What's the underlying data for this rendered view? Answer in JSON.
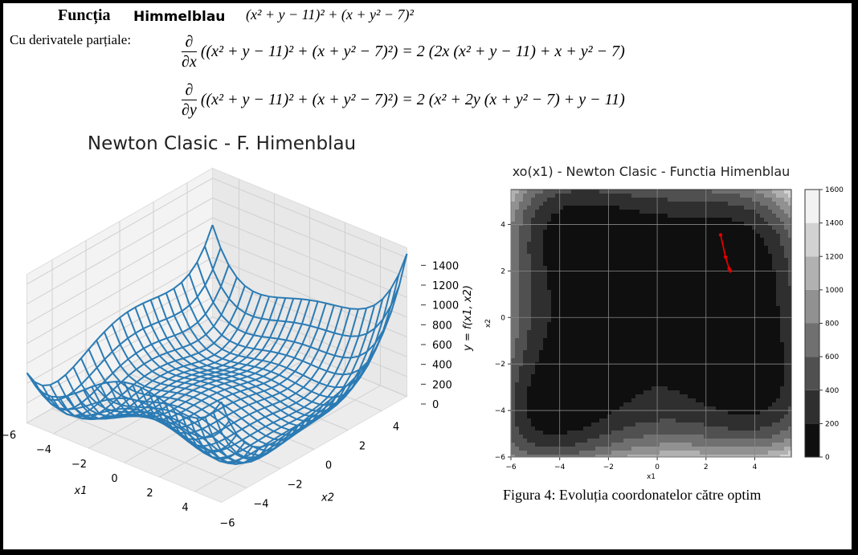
{
  "header": {
    "title_prefix": "Funcția",
    "title_name": "Himmelblau",
    "formula": "(x² + y − 11)² + (x + y² − 7)²",
    "derivatives_label": "Cu derivatele parțiale:",
    "derivative_x": {
      "numerator": "∂",
      "denominator": "∂x",
      "expression": "((x² + y − 11)² + (x + y² − 7)²) = 2 (2x (x² + y − 11) + x + y² − 7)"
    },
    "derivative_y": {
      "numerator": "∂",
      "denominator": "∂y",
      "expression": "((x² + y − 11)² + (x + y² − 7)²) = 2 (x² + 2y (x + y² − 7) + y − 11)"
    }
  },
  "chart_data": [
    {
      "type": "surface3d",
      "title": "Newton Clasic - F. Himenblau",
      "xlabel": "x1",
      "ylabel": "x2",
      "zlabel": "y = f(x1, x2)",
      "color": "#2b7bb4",
      "xlim": [
        -5.5,
        5.5
      ],
      "ylim": [
        -5.5,
        5.5
      ],
      "zlim": [
        0,
        1500
      ],
      "xticks": [
        {
          "value": -6,
          "label": "−6"
        },
        {
          "value": -4,
          "label": "−4"
        },
        {
          "value": -2,
          "label": "−2"
        },
        0,
        2,
        4
      ],
      "yticks": [
        {
          "value": -6,
          "label": "−6"
        },
        {
          "value": -4,
          "label": "−4"
        },
        {
          "value": -2,
          "label": "−2"
        },
        0,
        2,
        4
      ],
      "zticks": [
        0,
        200,
        400,
        600,
        800,
        1000,
        1200,
        1400
      ]
    },
    {
      "type": "contour",
      "title": "xo(x1) - Newton Clasic - Functia Himenblau",
      "xlabel": "x1",
      "ylabel": "x2",
      "grid": true,
      "xlim": [
        -6,
        5.5
      ],
      "ylim": [
        -6,
        5.5
      ],
      "xticks": [
        {
          "value": -6,
          "label": "−6"
        },
        {
          "value": -4,
          "label": "−4"
        },
        {
          "value": -2,
          "label": "−2"
        },
        0,
        2,
        4
      ],
      "yticks": [
        {
          "value": -6,
          "label": "−6"
        },
        {
          "value": -4,
          "label": "−4"
        },
        {
          "value": -2,
          "label": "−2"
        },
        0,
        2,
        4
      ],
      "colorbar_ticks": [
        0,
        200,
        400,
        600,
        800,
        1000,
        1200,
        1400,
        1600
      ],
      "series": [
        {
          "color": "#e00000",
          "x": [
            2.6,
            2.8,
            2.95,
            3.0
          ],
          "y": [
            3.55,
            2.6,
            2.1,
            2.0
          ]
        }
      ]
    }
  ],
  "caption": "Figura 4: Evoluția coordonatelor către optim"
}
